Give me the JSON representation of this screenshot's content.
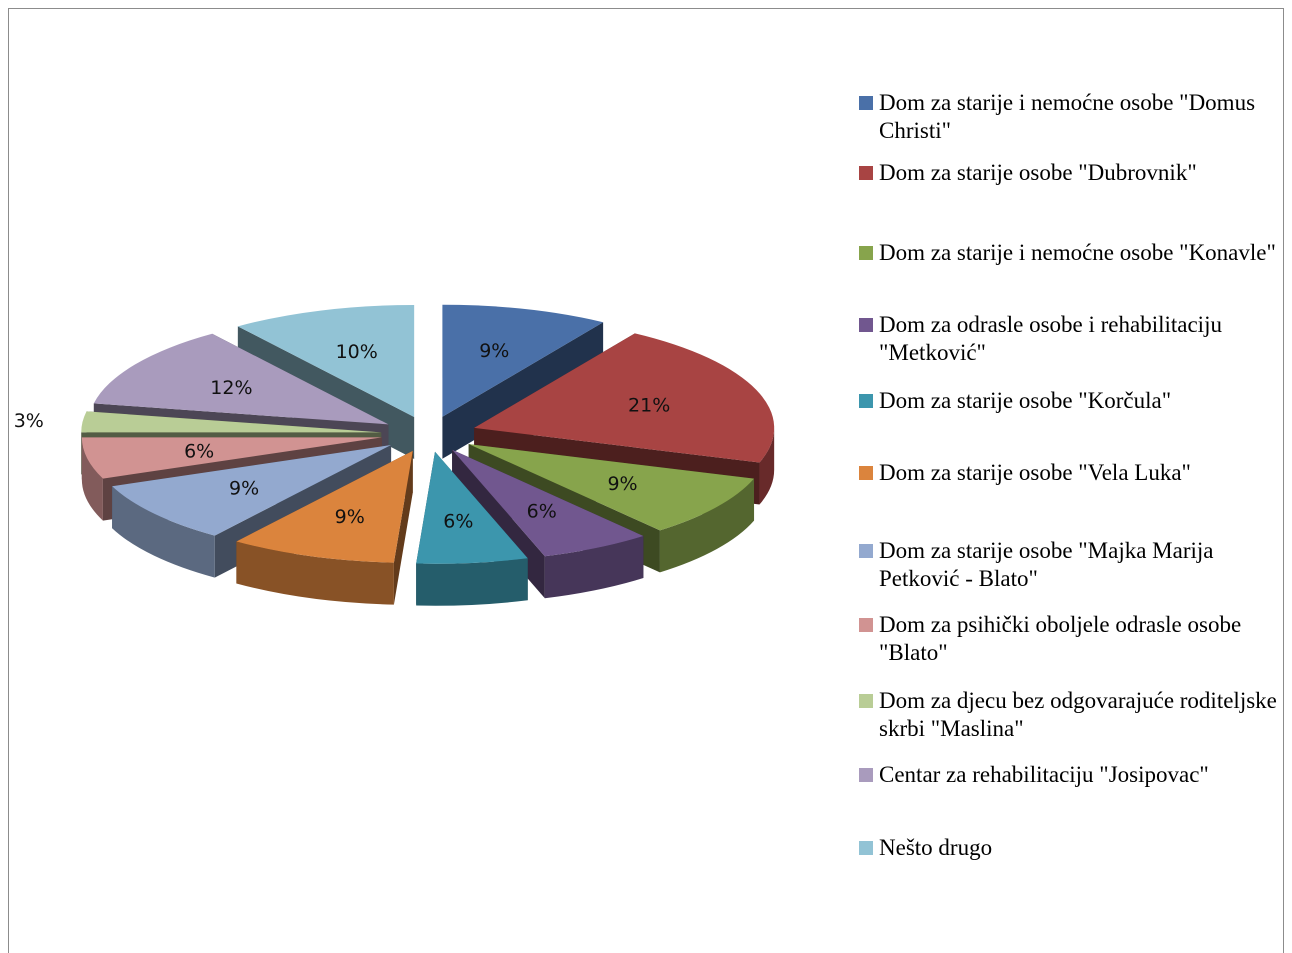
{
  "chart_data": {
    "type": "pie",
    "style": "3d-exploded",
    "legend_position": "right",
    "slices": [
      {
        "label": "Dom za starije i nemoćne osobe \"Domus Christi\"",
        "value": 9,
        "value_label": "9%",
        "color": "#4A70A8"
      },
      {
        "label": "Dom za starije osobe \"Dubrovnik\"",
        "value": 21,
        "value_label": "21%",
        "color": "#A84443"
      },
      {
        "label": "Dom za starije i nemoćne osobe \"Konavle\"",
        "value": 9,
        "value_label": "9%",
        "color": "#87A44C"
      },
      {
        "label": "Dom za odrasle osobe i rehabilitaciju \"Metković\"",
        "value": 6,
        "value_label": "6%",
        "color": "#71578F"
      },
      {
        "label": "Dom za starije osobe \"Korčula\"",
        "value": 6,
        "value_label": "6%",
        "color": "#3C96AD"
      },
      {
        "label": "Dom za starije osobe \"Vela Luka\"",
        "value": 9,
        "value_label": "9%",
        "color": "#DB843D"
      },
      {
        "label": "Dom za starije osobe \"Majka Marija Petković - Blato\"",
        "value": 9,
        "value_label": "9%",
        "color": "#93A9CF"
      },
      {
        "label": "Dom za psihički oboljele odrasle osobe \"Blato\"",
        "value": 6,
        "value_label": "6%",
        "color": "#D19392"
      },
      {
        "label": "Dom za djecu bez odgovarajuće roditeljske skrbi \"Maslina\"",
        "value": 3,
        "value_label": "3%",
        "color": "#B9CD96"
      },
      {
        "label": "Centar za rehabilitaciju \"Josipovac\"",
        "value": 12,
        "value_label": "12%",
        "color": "#A99BBD"
      },
      {
        "label": "Nešto drugo",
        "value": 10,
        "value_label": "10%",
        "color": "#92C3D5"
      }
    ]
  }
}
